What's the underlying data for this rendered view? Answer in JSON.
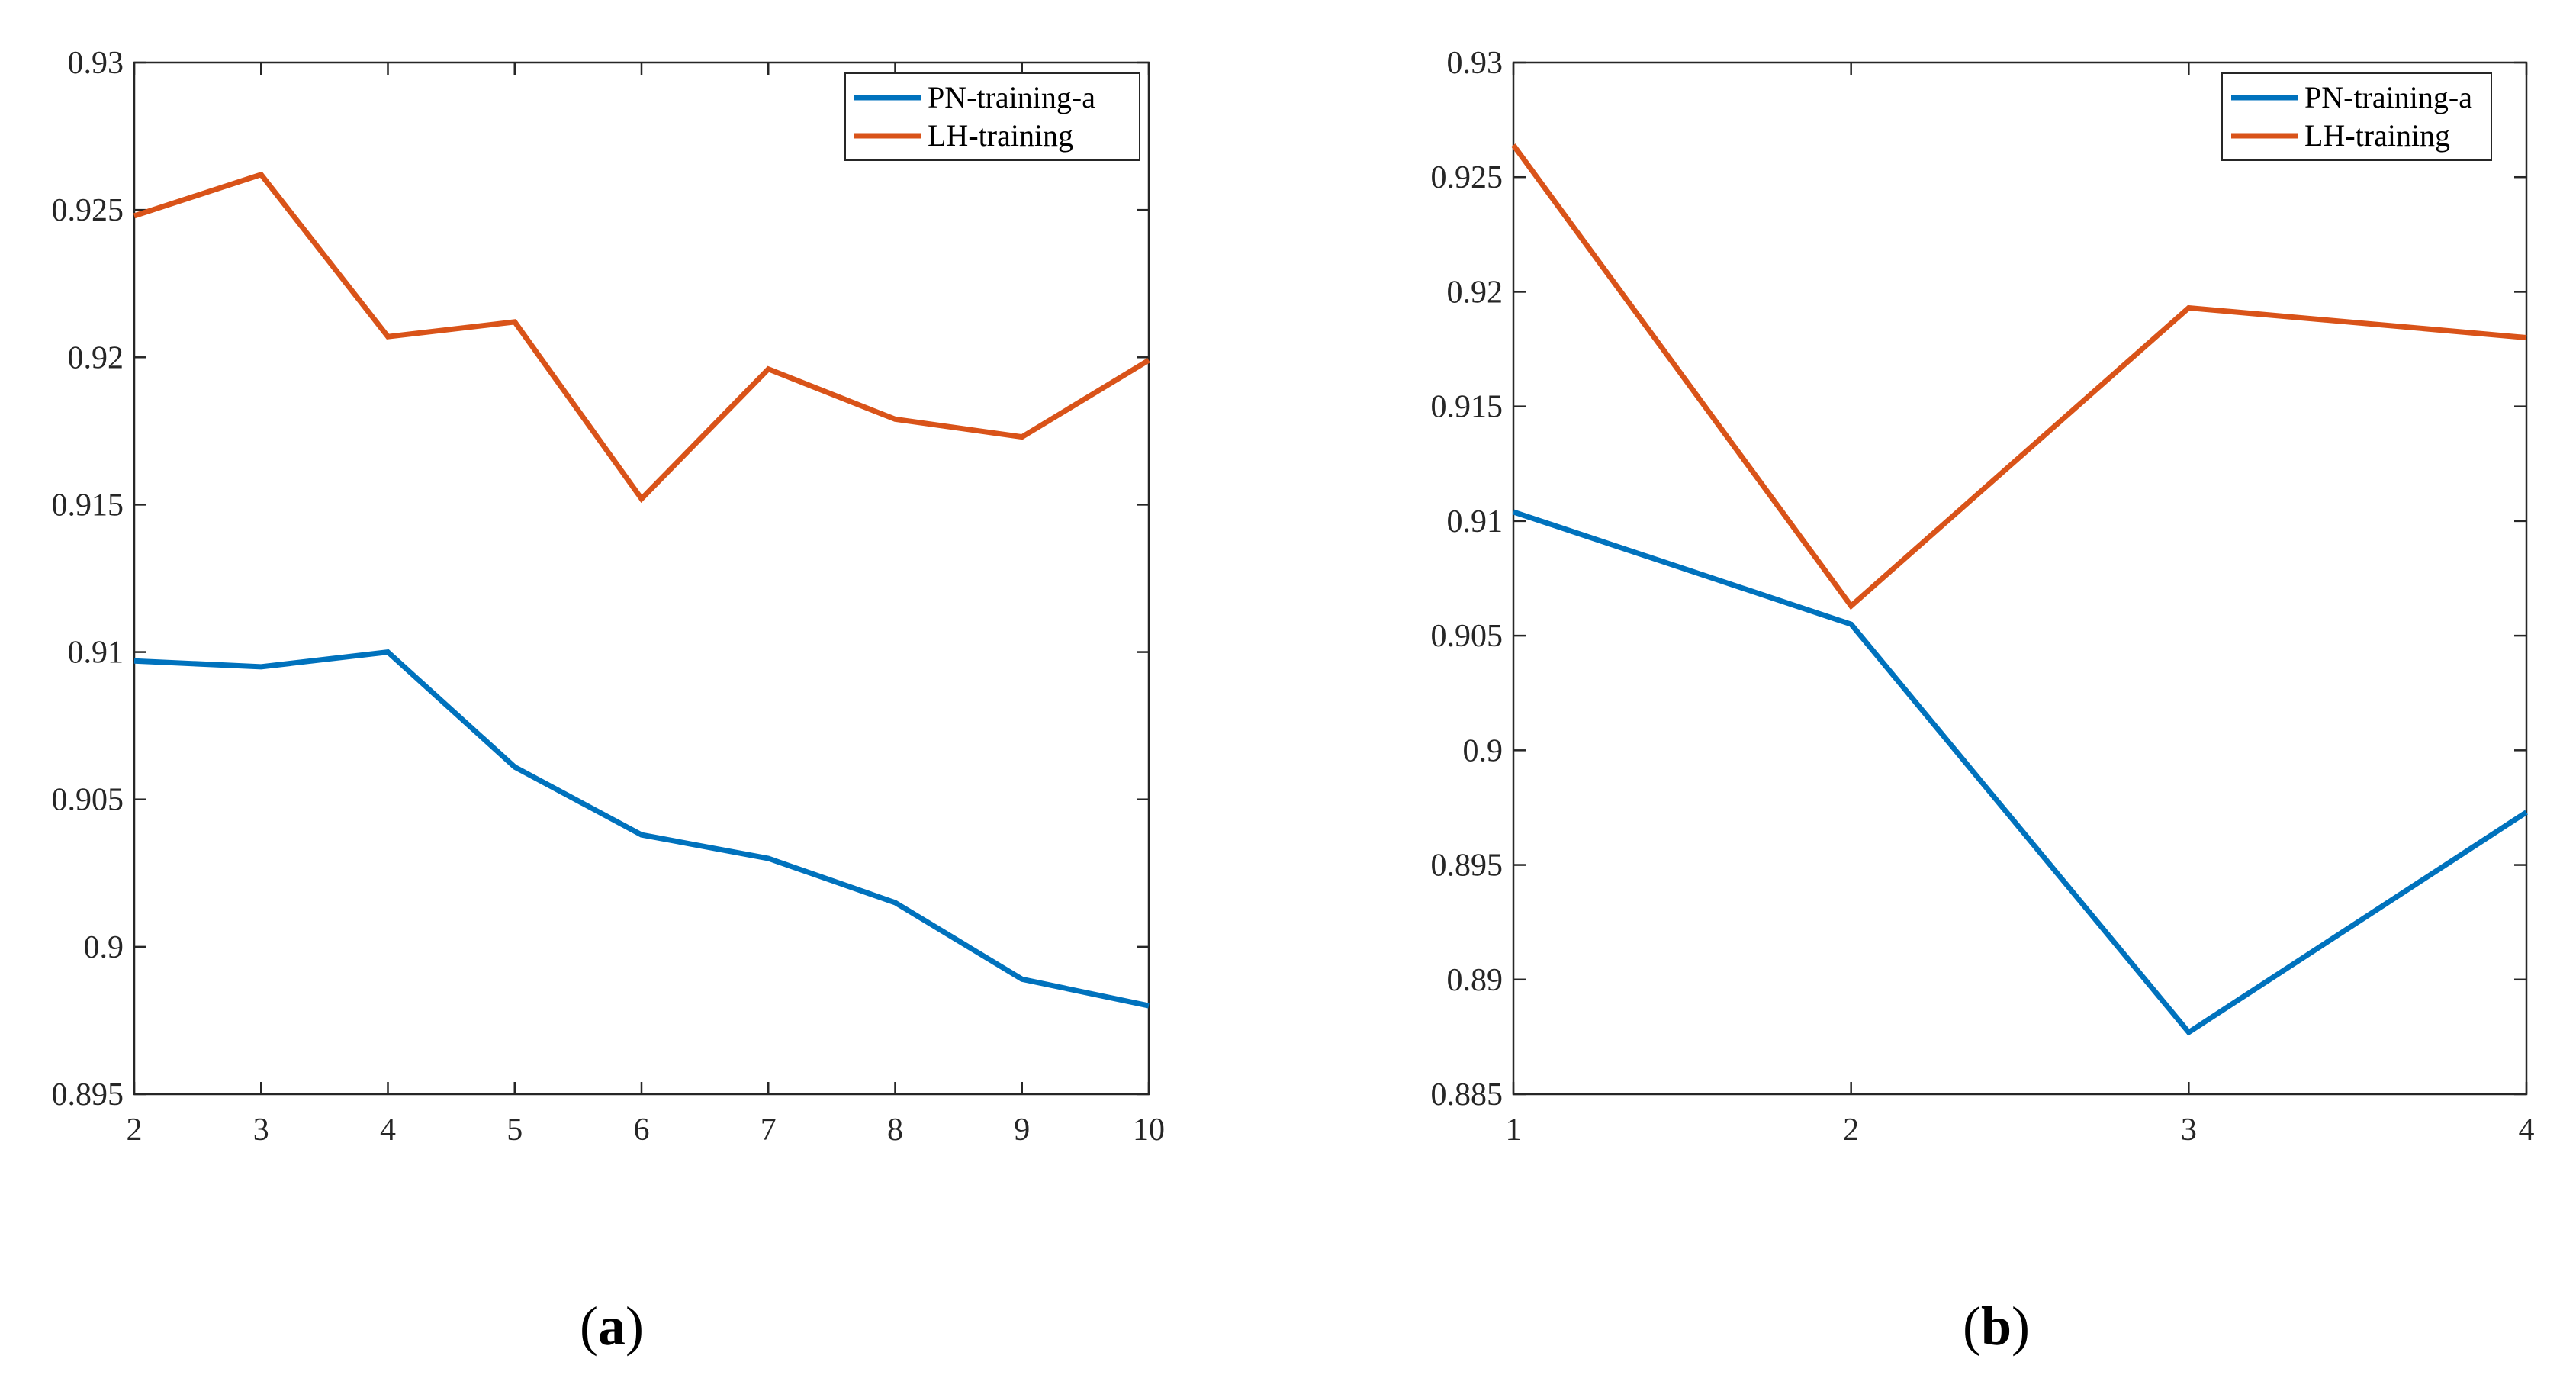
{
  "colors": {
    "pn": "#0072BD",
    "lh": "#D95319",
    "axis": "#262626"
  },
  "chart_data": [
    {
      "type": "line",
      "caption_letter": "a",
      "x": [
        2,
        3,
        4,
        5,
        6,
        7,
        8,
        9,
        10
      ],
      "xlim": [
        2,
        10
      ],
      "ylim": [
        0.895,
        0.93
      ],
      "x_ticks": [
        "2",
        "3",
        "4",
        "5",
        "6",
        "7",
        "8",
        "9",
        "10"
      ],
      "y_ticks": [
        "0.895",
        "0.9",
        "0.905",
        "0.91",
        "0.915",
        "0.92",
        "0.925",
        "0.93"
      ],
      "legend_position": "top-right",
      "series": [
        {
          "name": "PN-training-a",
          "color_key": "pn",
          "values": [
            0.9097,
            0.9095,
            0.91,
            0.9061,
            0.9038,
            0.903,
            0.9015,
            0.8989,
            0.898
          ]
        },
        {
          "name": "LH-training",
          "color_key": "lh",
          "values": [
            0.9248,
            0.9262,
            0.9207,
            0.9212,
            0.9152,
            0.9196,
            0.9179,
            0.9173,
            0.9199
          ]
        }
      ]
    },
    {
      "type": "line",
      "caption_letter": "b",
      "x": [
        1,
        2,
        3,
        4
      ],
      "xlim": [
        1,
        4
      ],
      "ylim": [
        0.885,
        0.93
      ],
      "x_ticks": [
        "1",
        "2",
        "3",
        "4"
      ],
      "y_ticks": [
        "0.885",
        "0.89",
        "0.895",
        "0.9",
        "0.905",
        "0.91",
        "0.915",
        "0.92",
        "0.925",
        "0.93"
      ],
      "legend_position": "top-right",
      "series": [
        {
          "name": "PN-training-a",
          "color_key": "pn",
          "values": [
            0.9104,
            0.9055,
            0.8877,
            0.8973
          ]
        },
        {
          "name": "LH-training",
          "color_key": "lh",
          "values": [
            0.9264,
            0.9063,
            0.9193,
            0.918
          ]
        }
      ]
    }
  ]
}
